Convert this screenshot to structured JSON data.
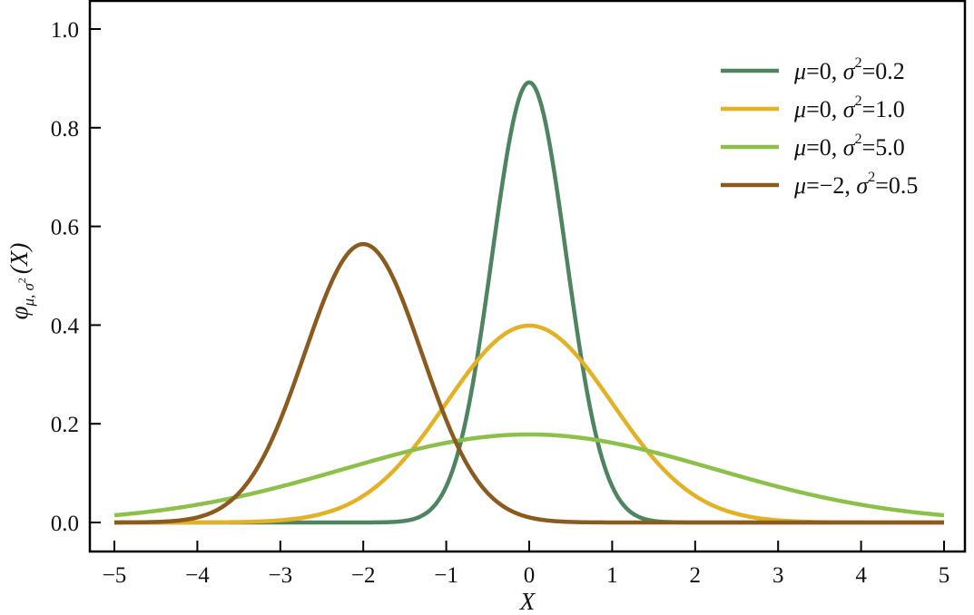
{
  "chart_data": {
    "type": "line",
    "title": "",
    "xlabel": "X",
    "ylabel": "φμ, σ2(X)",
    "ylabel_parts": {
      "main": "φ",
      "sub": "μ, σ",
      "sup": "2",
      "arg": "(X)"
    },
    "xlim": [
      -5.3,
      5.3
    ],
    "ylim": [
      -0.06,
      1.05
    ],
    "xticks": [
      -5,
      -4,
      -3,
      -2,
      -1,
      0,
      1,
      2,
      3,
      4,
      5
    ],
    "xtick_labels": [
      "−5",
      "−4",
      "−3",
      "−2",
      "−1",
      "0",
      "1",
      "2",
      "3",
      "4",
      "5"
    ],
    "yticks": [
      0.0,
      0.2,
      0.4,
      0.6,
      0.8,
      1.0
    ],
    "ytick_labels": [
      "0.0",
      "0.2",
      "0.4",
      "0.6",
      "0.8",
      "1.0"
    ],
    "x_range": [
      -5,
      5
    ],
    "grid": false,
    "legend_position": "top-right",
    "series": [
      {
        "name": "μ=0, σ2=0.2",
        "label": {
          "pre": "μ=0, σ",
          "sup": "2",
          "post": "=0.2"
        },
        "mu": 0,
        "variance": 0.2,
        "color": "#4e8560"
      },
      {
        "name": "μ=0, σ2=1.0",
        "label": {
          "pre": "μ=0, σ",
          "sup": "2",
          "post": "=1.0"
        },
        "mu": 0,
        "variance": 1.0,
        "color": "#e2b126"
      },
      {
        "name": "μ=0, σ2=5.0",
        "label": {
          "pre": "μ=0, σ",
          "sup": "2",
          "post": "=5.0"
        },
        "mu": 0,
        "variance": 5.0,
        "color": "#8dc04b"
      },
      {
        "name": "μ=−2, σ2=0.5",
        "label": {
          "pre": "μ=−2, σ",
          "sup": "2",
          "post": "=0.5"
        },
        "mu": -2,
        "variance": 0.5,
        "color": "#8a5a1f"
      }
    ]
  }
}
